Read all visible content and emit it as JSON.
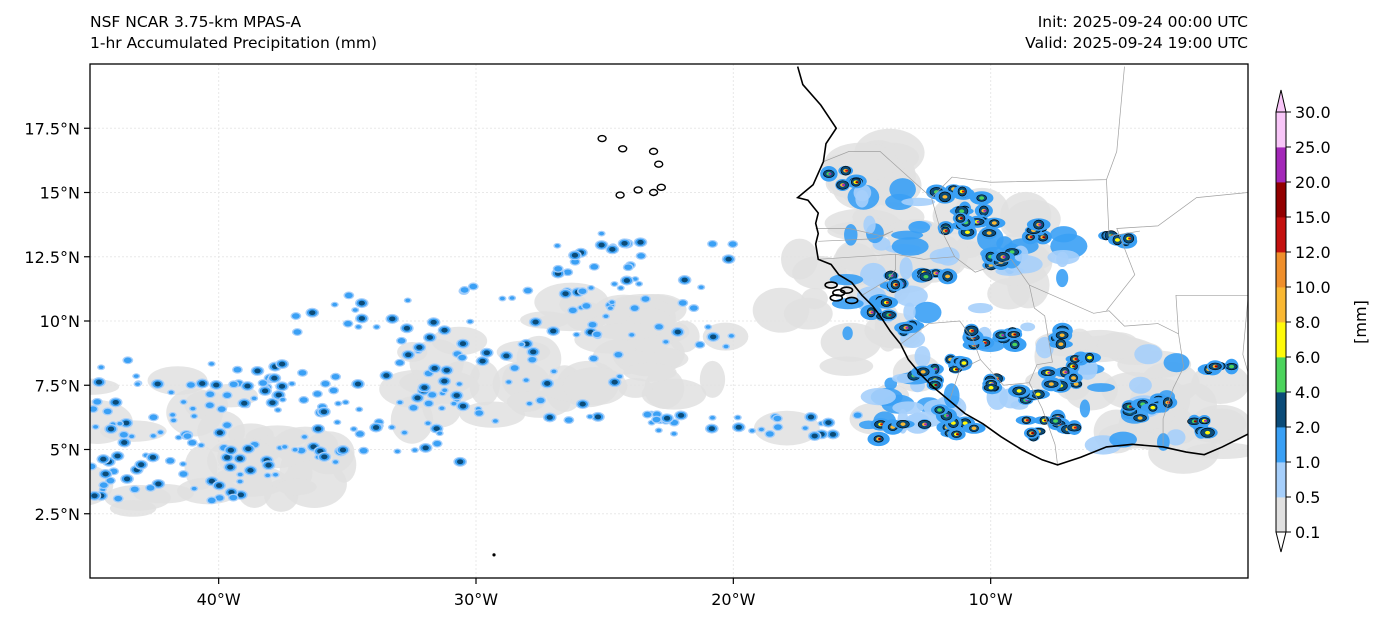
{
  "header": {
    "model": "NSF NCAR 3.75-km MPAS-A",
    "field": "1-hr Accumulated Precipitation (mm)",
    "init": "Init: 2025-09-24 00:00 UTC",
    "valid": "Valid: 2025-09-24 19:00 UTC"
  },
  "map": {
    "projection": "PlateCarree",
    "lon_range": [
      -45,
      0
    ],
    "lat_range": [
      0,
      20
    ],
    "lon_ticks": [
      {
        "value": -40,
        "label": "40°W"
      },
      {
        "value": -30,
        "label": "30°W"
      },
      {
        "value": -20,
        "label": "20°W"
      },
      {
        "value": -10,
        "label": "10°W"
      }
    ],
    "lat_ticks": [
      {
        "value": 17.5,
        "label": "17.5°N"
      },
      {
        "value": 15,
        "label": "15°N"
      },
      {
        "value": 12.5,
        "label": "12.5°N"
      },
      {
        "value": 10,
        "label": "10°N"
      },
      {
        "value": 7.5,
        "label": "7.5°N"
      },
      {
        "value": 5,
        "label": "5°N"
      },
      {
        "value": 2.5,
        "label": "2.5°N"
      }
    ],
    "gridlines": true
  },
  "colorbar": {
    "label": "[mm]",
    "extend": "both",
    "levels": [
      "0.1",
      "0.5",
      "1.0",
      "2.0",
      "4.0",
      "6.0",
      "8.0",
      "10.0",
      "12.0",
      "15.0",
      "20.0",
      "25.0",
      "30.0"
    ],
    "colors": [
      "#e1e1e1",
      "#a6cffb",
      "#3aa0f5",
      "#0b4b78",
      "#4bd35c",
      "#fffa0a",
      "#f9b833",
      "#ef8f2c",
      "#c4110f",
      "#920000",
      "#a328b8",
      "#f8c6f8"
    ],
    "under_color": "#ffffff",
    "over_color": "#f8c6f8"
  },
  "colors": {
    "coastline": "#000000",
    "borders": "#a0a0a0",
    "gridline": "#e8e8e8"
  }
}
